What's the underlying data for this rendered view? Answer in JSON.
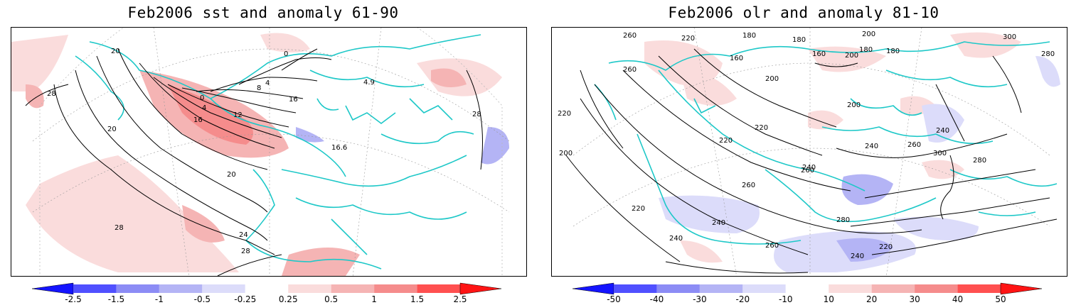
{
  "panels": [
    {
      "title": "Feb2006 sst and anomaly 61-90",
      "colorbar": {
        "ticks": [
          "-2.5",
          "-1.5",
          "-1",
          "-0.5",
          "-0.25",
          "0.25",
          "0.5",
          "1",
          "1.5",
          "2.5"
        ],
        "colors": [
          "#1414ff",
          "#5050ff",
          "#8c8cf5",
          "#b4b4f5",
          "#dcdcfa",
          "#ffffff",
          "#fadcdc",
          "#f5b4b4",
          "#f58c8c",
          "#ff5050",
          "#ff1414"
        ]
      },
      "contour_labels": [
        "28",
        "28",
        "20",
        "20",
        "0",
        "4",
        "8",
        "12",
        "16",
        "0",
        "4",
        "16",
        "20",
        "24",
        "28",
        "28",
        "16.6",
        "4.9"
      ]
    },
    {
      "title": "Feb2006 olr and anomaly 81-10",
      "colorbar": {
        "ticks": [
          "-50",
          "-40",
          "-30",
          "-20",
          "-10",
          "10",
          "20",
          "30",
          "40",
          "50"
        ],
        "colors": [
          "#1414ff",
          "#5050ff",
          "#8c8cf5",
          "#b4b4f5",
          "#dcdcfa",
          "#ffffff",
          "#fadcdc",
          "#f5b4b4",
          "#f58c8c",
          "#ff5050",
          "#ff1414"
        ]
      },
      "contour_labels": [
        "260",
        "220",
        "180",
        "160",
        "180",
        "200",
        "180",
        "160",
        "200",
        "180",
        "300",
        "280",
        "260",
        "220",
        "200",
        "220",
        "200",
        "240",
        "220",
        "260",
        "240",
        "280",
        "300",
        "260",
        "260",
        "240",
        "220",
        "240",
        "240",
        "260",
        "220",
        "280",
        "240",
        "200"
      ]
    }
  ],
  "colors": {
    "coast": "#1ec8c8",
    "contour": "#000000"
  }
}
